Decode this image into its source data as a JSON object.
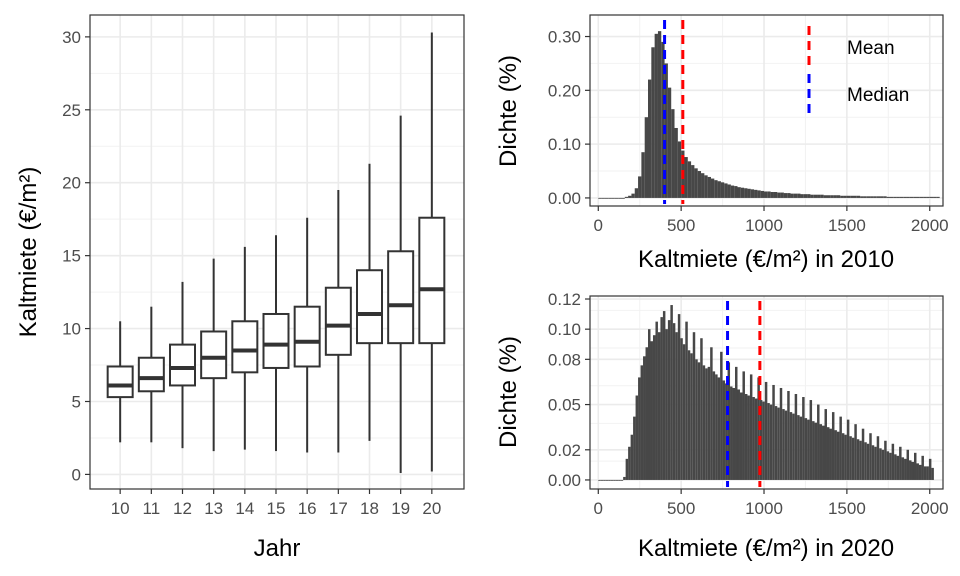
{
  "chart_data": [
    {
      "type": "boxplot",
      "xlabel": "Jahr",
      "ylabel": "Kaltmiete (€/m²)",
      "ylim": [
        -1,
        31.5
      ],
      "y_ticks": [
        "0",
        "5",
        "10",
        "15",
        "20",
        "25",
        "30"
      ],
      "boxes": [
        {
          "label": "10",
          "whisker_low": 2.2,
          "q1": 5.3,
          "median": 6.1,
          "q3": 7.4,
          "whisker_high": 10.5
        },
        {
          "label": "11",
          "whisker_low": 2.2,
          "q1": 5.7,
          "median": 6.6,
          "q3": 8.0,
          "whisker_high": 11.5
        },
        {
          "label": "12",
          "whisker_low": 1.8,
          "q1": 6.1,
          "median": 7.3,
          "q3": 8.9,
          "whisker_high": 13.2
        },
        {
          "label": "13",
          "whisker_low": 1.6,
          "q1": 6.6,
          "median": 8.0,
          "q3": 9.8,
          "whisker_high": 14.8
        },
        {
          "label": "14",
          "whisker_low": 1.7,
          "q1": 7.0,
          "median": 8.5,
          "q3": 10.5,
          "whisker_high": 15.6
        },
        {
          "label": "15",
          "whisker_low": 1.6,
          "q1": 7.3,
          "median": 8.9,
          "q3": 11.0,
          "whisker_high": 16.4
        },
        {
          "label": "16",
          "whisker_low": 1.5,
          "q1": 7.4,
          "median": 9.1,
          "q3": 11.5,
          "whisker_high": 17.6
        },
        {
          "label": "17",
          "whisker_low": 1.5,
          "q1": 8.2,
          "median": 10.2,
          "q3": 12.8,
          "whisker_high": 19.5
        },
        {
          "label": "18",
          "whisker_low": 2.3,
          "q1": 9.0,
          "median": 11.0,
          "q3": 14.0,
          "whisker_high": 21.3
        },
        {
          "label": "19",
          "whisker_low": 0.1,
          "q1": 9.0,
          "median": 11.6,
          "q3": 15.3,
          "whisker_high": 24.6
        },
        {
          "label": "20",
          "whisker_low": 0.2,
          "q1": 9.0,
          "median": 12.7,
          "q3": 17.6,
          "whisker_high": 30.3
        }
      ]
    },
    {
      "type": "histogram",
      "xlabel": "Kaltmiete (€/m²) in 2010",
      "ylabel": "Dichte (%)",
      "xlim": [
        -50,
        2080
      ],
      "ylim": [
        -0.015,
        0.34
      ],
      "x_ticks": [
        "0",
        "500",
        "1000",
        "1500",
        "2000"
      ],
      "y_ticks": [
        "0.00",
        "0.10",
        "0.20",
        "0.30"
      ],
      "bin_width": 20,
      "bin_start": 0,
      "values": [
        0,
        0,
        0,
        0,
        0,
        0,
        0,
        0,
        0.002,
        0.004,
        0.008,
        0.018,
        0.04,
        0.085,
        0.15,
        0.22,
        0.28,
        0.305,
        0.31,
        0.29,
        0.25,
        0.205,
        0.165,
        0.13,
        0.105,
        0.088,
        0.076,
        0.068,
        0.061,
        0.055,
        0.05,
        0.046,
        0.042,
        0.039,
        0.036,
        0.033,
        0.031,
        0.029,
        0.027,
        0.025,
        0.023,
        0.022,
        0.02,
        0.019,
        0.018,
        0.017,
        0.016,
        0.015,
        0.014,
        0.013,
        0.012,
        0.012,
        0.011,
        0.011,
        0.01,
        0.01,
        0.009,
        0.009,
        0.008,
        0.008,
        0.008,
        0.007,
        0.007,
        0.007,
        0.006,
        0.006,
        0.006,
        0.006,
        0.005,
        0.005,
        0.005,
        0.005,
        0.005,
        0.004,
        0.004,
        0.004,
        0.004,
        0.004,
        0.004,
        0.003,
        0.003,
        0.003,
        0.003,
        0.003,
        0.003,
        0.003,
        0.003,
        0.002,
        0.002,
        0.002,
        0.002,
        0.002,
        0.002,
        0.002,
        0.002,
        0.002,
        0.002,
        0.002,
        0.002,
        0.002,
        0.002,
        0.002,
        0.002
      ],
      "mean": 510,
      "median": 400,
      "legend": [
        "Mean",
        "Median"
      ]
    },
    {
      "type": "histogram",
      "xlabel": "Kaltmiete (€/m²) in 2020",
      "ylabel": "Dichte (%)",
      "xlim": [
        -50,
        2080
      ],
      "ylim": [
        -0.006,
        0.122
      ],
      "x_ticks": [
        "0",
        "500",
        "1000",
        "1500",
        "2000"
      ],
      "y_ticks": [
        "0.00",
        "0.02",
        "0.05",
        "0.08",
        "0.10",
        "0.12"
      ],
      "bin_width": 15,
      "bin_start": 0,
      "values": [
        0,
        0,
        0,
        0,
        0,
        0,
        0,
        0,
        0,
        0,
        0.002,
        0.014,
        0.022,
        0.03,
        0.042,
        0.056,
        0.068,
        0.076,
        0.082,
        0.088,
        0.1,
        0.092,
        0.096,
        0.105,
        0.098,
        0.108,
        0.112,
        0.1,
        0.106,
        0.116,
        0.104,
        0.098,
        0.11,
        0.094,
        0.09,
        0.105,
        0.086,
        0.084,
        0.098,
        0.08,
        0.078,
        0.094,
        0.076,
        0.074,
        0.075,
        0.088,
        0.072,
        0.07,
        0.068,
        0.085,
        0.066,
        0.064,
        0.078,
        0.062,
        0.061,
        0.075,
        0.06,
        0.058,
        0.072,
        0.057,
        0.056,
        0.07,
        0.055,
        0.054,
        0.068,
        0.053,
        0.052,
        0.065,
        0.051,
        0.05,
        0.063,
        0.049,
        0.048,
        0.061,
        0.047,
        0.046,
        0.059,
        0.045,
        0.044,
        0.057,
        0.043,
        0.042,
        0.055,
        0.041,
        0.04,
        0.053,
        0.039,
        0.038,
        0.05,
        0.037,
        0.036,
        0.047,
        0.035,
        0.034,
        0.045,
        0.033,
        0.032,
        0.042,
        0.031,
        0.03,
        0.04,
        0.029,
        0.028,
        0.037,
        0.027,
        0.026,
        0.034,
        0.025,
        0.024,
        0.031,
        0.023,
        0.022,
        0.029,
        0.021,
        0.02,
        0.026,
        0.019,
        0.018,
        0.024,
        0.017,
        0.016,
        0.022,
        0.015,
        0.014,
        0.02,
        0.013,
        0.012,
        0.018,
        0.011,
        0.01,
        0.016,
        0.009,
        0.009,
        0.014,
        0.008
      ],
      "mean": 975,
      "median": 780
    }
  ],
  "colors": {
    "bar_fill": "#474747",
    "mean_line": "#ff0000",
    "median_line": "#0000ff",
    "grid_major": "#ebebeb",
    "grid_minor": "#f2f2f2",
    "panel_border": "#333333",
    "box_stroke": "#333333"
  }
}
